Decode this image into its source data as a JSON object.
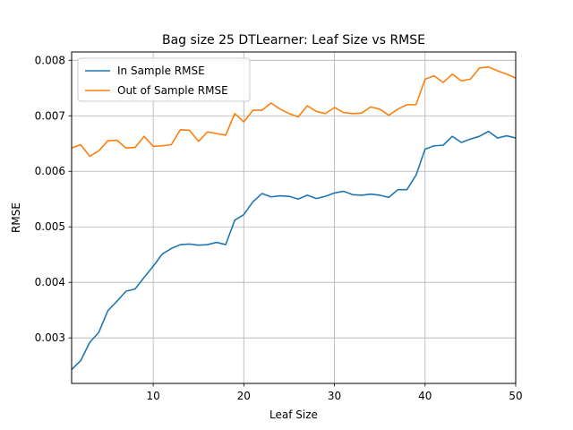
{
  "chart_data": {
    "type": "line",
    "title": "Bag size 25 DTLearner: Leaf Size vs RMSE",
    "xlabel": "Leaf Size",
    "ylabel": "RMSE",
    "xlim": [
      1,
      50
    ],
    "ylim": [
      0.00218,
      0.00815
    ],
    "xticks": [
      10,
      20,
      30,
      40,
      50
    ],
    "xtick_labels": [
      "10",
      "20",
      "30",
      "40",
      "50"
    ],
    "yticks": [
      0.003,
      0.004,
      0.005,
      0.006,
      0.007,
      0.008
    ],
    "ytick_labels": [
      "0.003",
      "0.004",
      "0.005",
      "0.006",
      "0.007",
      "0.008"
    ],
    "grid": true,
    "legend_position": "top-left",
    "x": [
      1,
      2,
      3,
      4,
      5,
      6,
      7,
      8,
      9,
      10,
      11,
      12,
      13,
      14,
      15,
      16,
      17,
      18,
      19,
      20,
      21,
      22,
      23,
      24,
      25,
      26,
      27,
      28,
      29,
      30,
      31,
      32,
      33,
      34,
      35,
      36,
      37,
      38,
      39,
      40,
      41,
      42,
      43,
      44,
      45,
      46,
      47,
      48,
      49,
      50
    ],
    "series": [
      {
        "name": "In Sample RMSE",
        "color": "#1f77b4",
        "values": [
          0.00243,
          0.00259,
          0.00292,
          0.0031,
          0.00349,
          0.00366,
          0.00384,
          0.00388,
          0.00409,
          0.00429,
          0.00451,
          0.00461,
          0.00468,
          0.00469,
          0.00467,
          0.00468,
          0.00472,
          0.00468,
          0.00512,
          0.00522,
          0.00545,
          0.0056,
          0.00554,
          0.00556,
          0.00555,
          0.0055,
          0.00557,
          0.00551,
          0.00555,
          0.00561,
          0.00564,
          0.00558,
          0.00557,
          0.00559,
          0.00557,
          0.00553,
          0.00567,
          0.00567,
          0.00593,
          0.0064,
          0.00646,
          0.00647,
          0.00663,
          0.00652,
          0.00658,
          0.00663,
          0.00672,
          0.0066,
          0.00664,
          0.0066
        ]
      },
      {
        "name": "Out of Sample RMSE",
        "color": "#ff7f0e",
        "values": [
          0.00642,
          0.00648,
          0.00627,
          0.00637,
          0.00655,
          0.00656,
          0.00642,
          0.00643,
          0.00663,
          0.00645,
          0.00646,
          0.00648,
          0.00675,
          0.00674,
          0.00654,
          0.00671,
          0.00668,
          0.00665,
          0.00704,
          0.00689,
          0.0071,
          0.0071,
          0.00723,
          0.00712,
          0.00704,
          0.00698,
          0.00718,
          0.00708,
          0.00704,
          0.00715,
          0.00706,
          0.00704,
          0.00705,
          0.00716,
          0.00712,
          0.00701,
          0.00712,
          0.0072,
          0.0072,
          0.00766,
          0.00772,
          0.0076,
          0.00775,
          0.00763,
          0.00766,
          0.00786,
          0.00788,
          0.00781,
          0.00775,
          0.00768
        ]
      }
    ]
  }
}
